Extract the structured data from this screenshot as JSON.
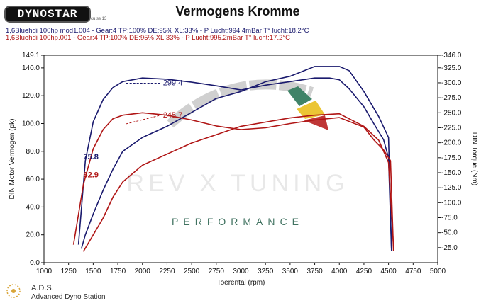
{
  "header": {
    "brand": "DYNOSTAR",
    "brand_sub": "cu.ss 13"
  },
  "runs": [
    {
      "text": "1,6Bluehdi 100hp mod1.004 - Gear:4 TP:100% DE:95% XL:33%   - P Lucht:994.4mBar T° lucht:18.2°C",
      "color": "#1a1a6e"
    },
    {
      "text": "1,6Bluehdi 100hp.001 - Gear:4 TP:100% DE:95% XL:33%   - P Lucht:995.2mBar T° lucht:17.2°C",
      "color": "#b01515"
    }
  ],
  "watermark": {
    "brand_letters": "REV X TUNING",
    "tagline": "PERFORMANCE"
  },
  "footer": {
    "title": "A.D.S.",
    "subtitle": "Advanced Dyno Station"
  },
  "chart_data": {
    "type": "line",
    "title": "Vermogens Kromme",
    "xlabel": "Toerental (rpm)",
    "ylabel_left": "DIN Motor Vermogen (pk)",
    "ylabel_right": "DIN Torque (Nm)",
    "x_ticks": [
      1000,
      1250,
      1500,
      1750,
      2000,
      2250,
      2500,
      2750,
      3000,
      3250,
      3500,
      3750,
      4000,
      4250,
      4500,
      4750,
      5000
    ],
    "xlim": [
      1000,
      5000
    ],
    "y_left_ticks": [
      0.0,
      20.0,
      40.0,
      60.0,
      80.0,
      100.0,
      120.0,
      140.0,
      149.1
    ],
    "ylim_left": [
      0,
      149.1
    ],
    "y_right_ticks": [
      -25.0,
      -50.0,
      -75.0,
      -100.0,
      -125.0,
      -150.0,
      -175.0,
      -200.0,
      -225.0,
      -250.0,
      -275.0,
      -300.0,
      -325.0,
      -346.0
    ],
    "ylim_right": [
      0,
      346
    ],
    "grid": false,
    "annotations": [
      {
        "text": "299.4",
        "x": 2050,
        "y_right": 299.4,
        "color": "#1a1a6e"
      },
      {
        "text": "245.7",
        "x": 2050,
        "y_right": 245.7,
        "color": "#b01515"
      },
      {
        "text": "75.8",
        "x": 1400,
        "y_left": 75.8,
        "color": "#1a1a6e"
      },
      {
        "text": "62.9",
        "x": 1400,
        "y_left": 62.9,
        "color": "#b01515"
      }
    ],
    "series": [
      {
        "name": "1,6Bluehdi 100hp mod1.004",
        "measure": "torque",
        "axis": "right",
        "color": "#1a1a6e",
        "x": [
          1350,
          1420,
          1500,
          1600,
          1700,
          1800,
          2000,
          2250,
          2500,
          2750,
          3000,
          3250,
          3500,
          3750,
          3900,
          4000,
          4100,
          4250,
          4350,
          4450,
          4500,
          4530
        ],
        "y": [
          30,
          170,
          235,
          272,
          292,
          302,
          308,
          306,
          301,
          295,
          288,
          296,
          302,
          308,
          308,
          305,
          290,
          260,
          232,
          205,
          175,
          20
        ]
      },
      {
        "name": "1,6Bluehdi 100hp mod1.004",
        "measure": "power",
        "axis": "left",
        "color": "#1a1a6e",
        "x": [
          1380,
          1420,
          1500,
          1600,
          1700,
          1800,
          2000,
          2250,
          2500,
          2750,
          3000,
          3250,
          3500,
          3750,
          4000,
          4100,
          4250,
          4400,
          4500,
          4530
        ],
        "y": [
          10,
          20,
          35,
          52,
          67,
          80,
          90,
          98,
          108,
          118,
          123,
          130,
          134,
          141,
          141,
          138,
          123,
          105,
          90,
          10
        ]
      },
      {
        "name": "1,6Bluehdi 100hp.001",
        "measure": "torque",
        "axis": "right",
        "color": "#b01515",
        "x": [
          1300,
          1400,
          1500,
          1600,
          1700,
          1800,
          2000,
          2250,
          2500,
          2750,
          3000,
          3250,
          3500,
          3750,
          4000,
          4250,
          4350,
          4450,
          4520,
          4550
        ],
        "y": [
          30,
          130,
          190,
          222,
          240,
          246,
          250,
          246,
          238,
          228,
          222,
          225,
          232,
          238,
          242,
          226,
          205,
          188,
          170,
          20
        ]
      },
      {
        "name": "1,6Bluehdi 100hp.001",
        "measure": "power",
        "axis": "left",
        "color": "#b01515",
        "x": [
          1400,
          1500,
          1600,
          1700,
          1800,
          2000,
          2250,
          2500,
          2750,
          3000,
          3250,
          3500,
          3750,
          4000,
          4250,
          4400,
          4500,
          4550
        ],
        "y": [
          8,
          20,
          32,
          47,
          58,
          70,
          78,
          86,
          92,
          98,
          101,
          104,
          106,
          107,
          98,
          88,
          72,
          12
        ]
      }
    ]
  }
}
